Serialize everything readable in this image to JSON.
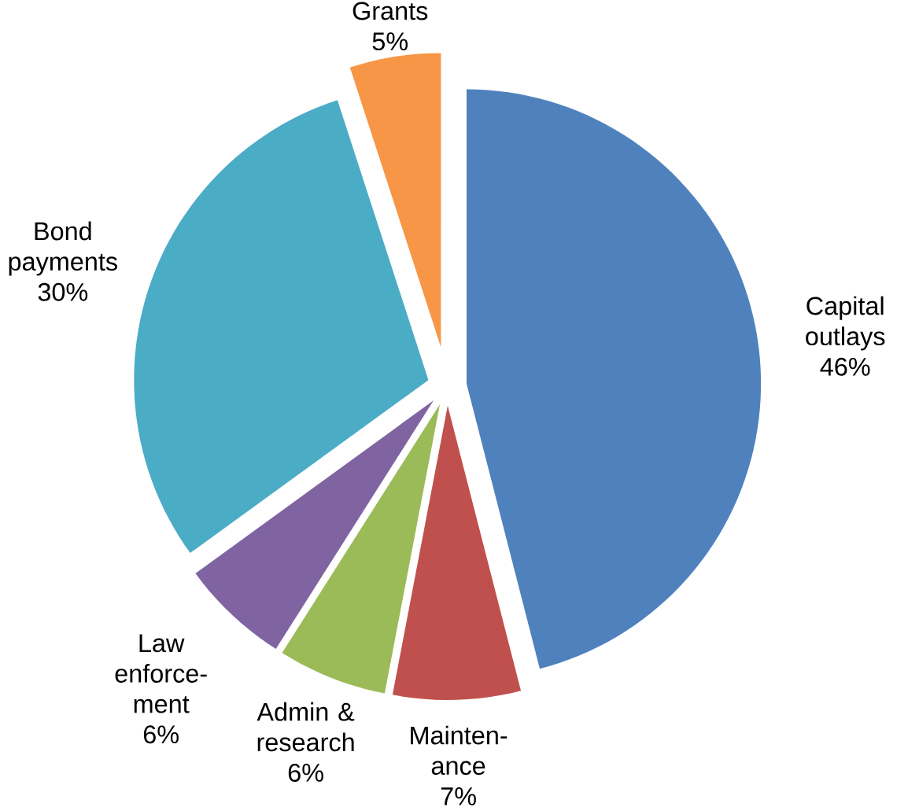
{
  "chart_data": {
    "type": "pie",
    "categories": [
      "Capital outlays",
      "Mainten-ance",
      "Admin & research",
      "Law enforce-ment",
      "Bond payments",
      "Grants"
    ],
    "values": [
      46,
      7,
      6,
      6,
      30,
      5
    ],
    "value_labels": [
      "46%",
      "7%",
      "6%",
      "6%",
      "30%",
      "5%"
    ],
    "colors": [
      "#4f81bd",
      "#c0504d",
      "#9bbb59",
      "#8064a2",
      "#4bacc6",
      "#f79646"
    ]
  }
}
